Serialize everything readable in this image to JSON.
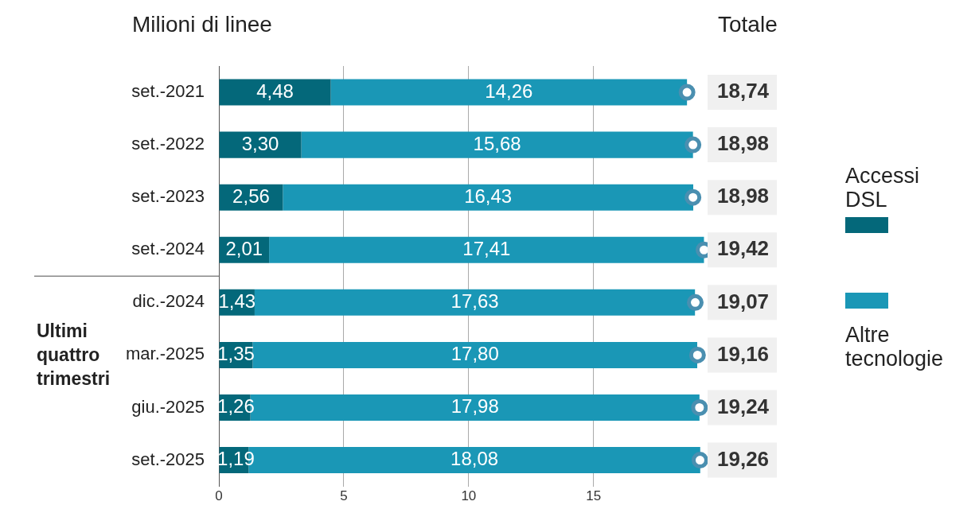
{
  "chart_data": {
    "type": "bar",
    "orientation": "horizontal",
    "stacked": true,
    "title": "Milioni di linee",
    "categories": [
      "set.-2021",
      "set.-2022",
      "set.-2023",
      "set.-2024",
      "dic.-2024",
      "mar.-2025",
      "giu.-2025",
      "set.-2025"
    ],
    "series": [
      {
        "name": "Accessi DSL",
        "color": "#04687a",
        "values": [
          4.48,
          3.3,
          2.56,
          2.01,
          1.43,
          1.35,
          1.26,
          1.19
        ],
        "value_labels": [
          "4,48",
          "3,30",
          "2,56",
          "2,01",
          "1,43",
          "1,35",
          "1,26",
          "1,19"
        ]
      },
      {
        "name": "Altre tecnologie",
        "color": "#1a97b6",
        "values": [
          14.26,
          15.68,
          16.43,
          17.41,
          17.63,
          17.8,
          17.98,
          18.08
        ],
        "value_labels": [
          "14,26",
          "15,68",
          "16,43",
          "17,41",
          "17,63",
          "17,80",
          "17,98",
          "18,08"
        ]
      },
      {
        "type": "scatter",
        "color": "#4a8fb0",
        "marker": "circle",
        "values": [
          18.74,
          18.98,
          18.98,
          19.42,
          19.07,
          19.16,
          19.24,
          19.26
        ]
      }
    ],
    "totals": [
      "18,74",
      "18,98",
      "18,98",
      "19,42",
      "19,07",
      "19,16",
      "19,24",
      "19,26"
    ],
    "xlim": [
      0,
      19.5
    ],
    "xticks": [
      0,
      5,
      10,
      15
    ],
    "grid": "x",
    "legend": "right",
    "annotations": [
      "Totale",
      "Ultimi quattro trimestri"
    ]
  }
}
